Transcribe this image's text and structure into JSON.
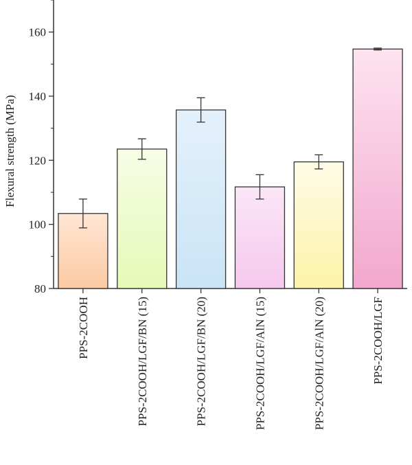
{
  "chart_data": {
    "type": "bar",
    "categories": [
      "PPS-2COOH",
      "PPS-2COOH/LGF/BN (15)",
      "PPS-2COOH/LGF/BN (20)",
      "PPS-2COOH/LGF/AlN (15)",
      "PPS-2COOH/LGF/AlN (20)",
      "PPS-2COOH/LGF"
    ],
    "values": [
      103.4,
      123.5,
      135.7,
      111.7,
      119.5,
      154.7
    ],
    "errors": [
      4.5,
      3.2,
      3.8,
      3.8,
      2.2,
      0.3
    ],
    "xlabel": "",
    "ylabel": "Flexural strength (MPa)",
    "ylim": [
      80,
      170
    ],
    "yticks": [
      80,
      100,
      120,
      140,
      160
    ],
    "grid": false,
    "colors": {
      "top": [
        "#ffe6d4",
        "#f6fde6",
        "#e4f1fc",
        "#fbe6f7",
        "#fefbe6",
        "#fde3f0"
      ],
      "bottom": [
        "#fccaa2",
        "#e6f9b6",
        "#c9e4f6",
        "#f5c8ee",
        "#fdf3a8",
        "#f2a7cd"
      ],
      "edge": "#333333"
    }
  }
}
